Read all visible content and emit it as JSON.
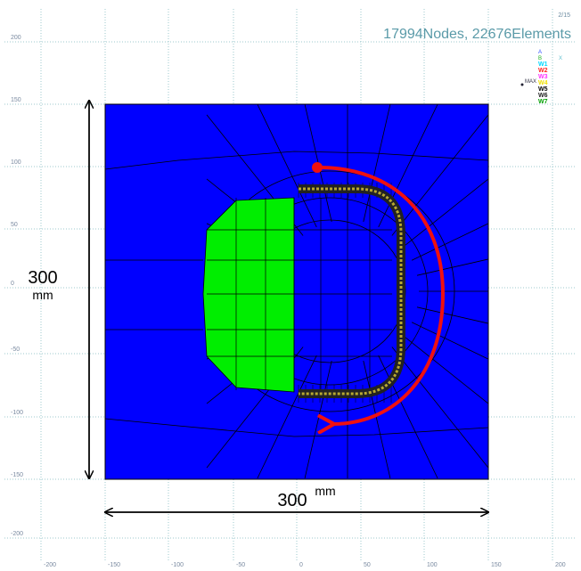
{
  "header": {
    "page": "2/15",
    "summary": "17994Nodes, 22676Elements"
  },
  "legend": {
    "axis_labels": [
      "A",
      "B",
      "X"
    ],
    "max": "MAX",
    "items": [
      {
        "label": "W1",
        "color": "#00d8ff"
      },
      {
        "label": "W2",
        "color": "#ff2020"
      },
      {
        "label": "W3",
        "color": "#ff30ff"
      },
      {
        "label": "W4",
        "color": "#f0e000"
      },
      {
        "label": "W5",
        "color": "#000000"
      },
      {
        "label": "W6",
        "color": "#202020"
      },
      {
        "label": "W7",
        "color": "#00a000"
      }
    ]
  },
  "grid": {
    "x_labels": [
      "-200",
      "-150",
      "-100",
      "-50",
      "0",
      "50",
      "100",
      "150",
      "200"
    ],
    "y_labels": [
      "200",
      "150",
      "100",
      "50",
      "0",
      "-50",
      "-100",
      "-150",
      "-200"
    ]
  },
  "dimensions": {
    "height_value": "300",
    "height_unit": "mm",
    "width_value": "300",
    "width_unit": "mm"
  }
}
